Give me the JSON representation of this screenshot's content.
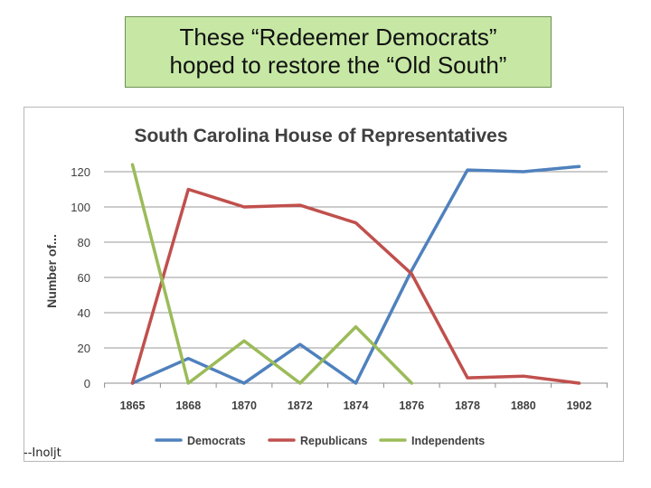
{
  "slide": {
    "title_line1": "These “Redeemer Democrats”",
    "title_line2": "hoped to restore the “Old South”",
    "credit": "--Inoljt"
  },
  "colors": {
    "democrats": "#4f81bd",
    "republicans": "#c0504d",
    "independents": "#9bbb59"
  },
  "chart_data": {
    "type": "line",
    "title": "South Carolina House of Representatives",
    "ylabel": "Number of...",
    "xlabel": "",
    "ylim": [
      0,
      120
    ],
    "yticks": [
      0,
      20,
      40,
      60,
      80,
      100,
      120
    ],
    "grid": true,
    "legend_position": "bottom",
    "categories": [
      "1865",
      "1868",
      "1870",
      "1872",
      "1874",
      "1876",
      "1878",
      "1880",
      "1902"
    ],
    "series": [
      {
        "name": "Democrats",
        "color": "#4f81bd",
        "values": [
          0,
          14,
          0,
          22,
          0,
          64,
          121,
          120,
          123
        ]
      },
      {
        "name": "Republicans",
        "color": "#c0504d",
        "values": [
          0,
          110,
          100,
          101,
          91,
          62,
          3,
          4,
          0
        ]
      },
      {
        "name": "Independents",
        "color": "#9bbb59",
        "values": [
          124,
          0,
          24,
          0,
          32,
          0,
          null,
          null,
          null
        ]
      }
    ]
  }
}
